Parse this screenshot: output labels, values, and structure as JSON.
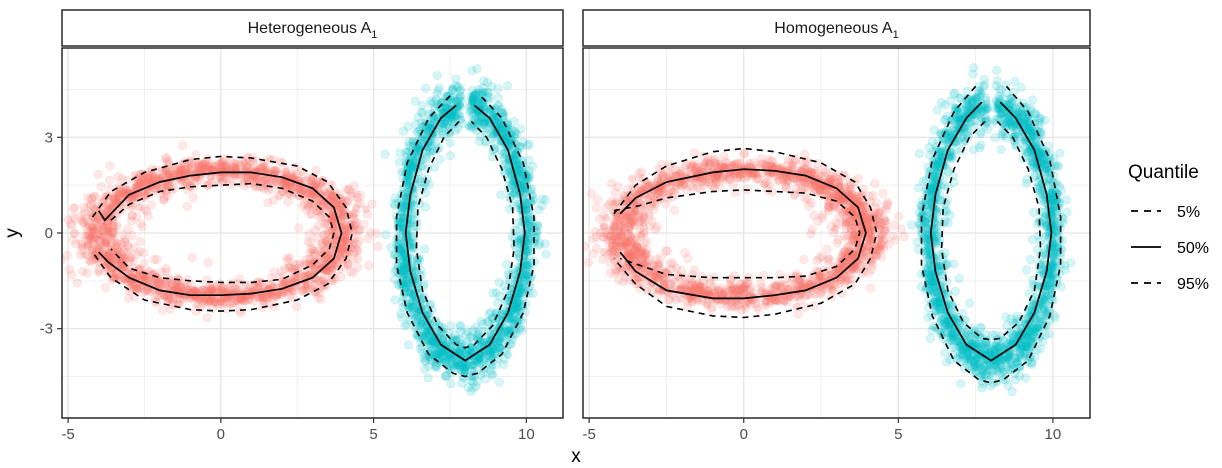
{
  "chart_data": {
    "type": "scatter",
    "facets": [
      {
        "label": "Heterogeneous A",
        "subscript": "1"
      },
      {
        "label": "Homogeneous A",
        "subscript": "1"
      }
    ],
    "xlabel": "x",
    "ylabel": "y",
    "xlim": [
      -5.2,
      11.2
    ],
    "ylim": [
      -5.8,
      5.8
    ],
    "x_ticks": [
      -5,
      0,
      5,
      10
    ],
    "y_ticks": [
      -3,
      0,
      3
    ],
    "x_tick_labels": [
      "-5",
      "0",
      "5",
      "10"
    ],
    "y_tick_labels": [
      "-3",
      "0",
      "3"
    ],
    "grid": true,
    "legend": {
      "title": "Quantile",
      "placement": "right",
      "items": [
        {
          "label": "5%",
          "linestyle": "dashed"
        },
        {
          "label": "50%",
          "linestyle": "solid"
        },
        {
          "label": "95%",
          "linestyle": "dashed"
        }
      ]
    },
    "clusters": [
      {
        "name": "left ellipse",
        "color": "#F8766D",
        "center": [
          0,
          0
        ],
        "rx": 4.0,
        "ry": 2.0
      },
      {
        "name": "right ellipse",
        "color": "#00BFC4",
        "center": [
          8,
          0
        ],
        "rx": 2.0,
        "ry": 4.0,
        "gap_at_top": true
      }
    ],
    "quantile_curves": [
      {
        "facet": 0,
        "cluster": "left ellipse",
        "q50": [
          [
            -4.0,
            0.7
          ],
          [
            -3.8,
            0.4
          ],
          [
            -3.0,
            1.2
          ],
          [
            -2.0,
            1.6
          ],
          [
            -1.0,
            1.8
          ],
          [
            0,
            1.9
          ],
          [
            1.0,
            1.9
          ],
          [
            2.0,
            1.75
          ],
          [
            3.0,
            1.4
          ],
          [
            3.7,
            0.8
          ],
          [
            3.95,
            0.0
          ],
          [
            3.7,
            -0.8
          ],
          [
            3.0,
            -1.4
          ],
          [
            2.0,
            -1.75
          ],
          [
            1.0,
            -1.9
          ],
          [
            0,
            -1.95
          ],
          [
            -1.0,
            -1.95
          ],
          [
            -2.0,
            -1.8
          ],
          [
            -3.0,
            -1.4
          ],
          [
            -3.7,
            -0.9
          ],
          [
            -4.0,
            -0.6
          ]
        ],
        "q05_outer": [
          [
            -4.2,
            0.5
          ],
          [
            -3.6,
            1.3
          ],
          [
            -2.5,
            1.9
          ],
          [
            -1.0,
            2.3
          ],
          [
            0,
            2.4
          ],
          [
            1.0,
            2.35
          ],
          [
            2.5,
            2.1
          ],
          [
            3.5,
            1.6
          ],
          [
            4.1,
            0.8
          ],
          [
            4.3,
            0.0
          ],
          [
            4.1,
            -0.8
          ],
          [
            3.5,
            -1.6
          ],
          [
            2.5,
            -2.1
          ],
          [
            1.0,
            -2.4
          ],
          [
            0,
            -2.45
          ],
          [
            -1.0,
            -2.4
          ],
          [
            -2.5,
            -2.1
          ],
          [
            -3.6,
            -1.4
          ],
          [
            -4.2,
            -0.6
          ]
        ],
        "q95_inner": [
          [
            -3.6,
            0.4
          ],
          [
            -3.0,
            0.9
          ],
          [
            -2.0,
            1.3
          ],
          [
            -1.0,
            1.45
          ],
          [
            0,
            1.5
          ],
          [
            1.0,
            1.55
          ],
          [
            2.0,
            1.4
          ],
          [
            3.0,
            1.0
          ],
          [
            3.55,
            0.5
          ],
          [
            3.7,
            0.0
          ],
          [
            3.55,
            -0.5
          ],
          [
            3.0,
            -1.0
          ],
          [
            2.0,
            -1.45
          ],
          [
            1.0,
            -1.55
          ],
          [
            0,
            -1.55
          ],
          [
            -1.0,
            -1.5
          ],
          [
            -2.0,
            -1.4
          ],
          [
            -3.0,
            -1.1
          ],
          [
            -3.6,
            -0.5
          ]
        ]
      },
      {
        "facet": 0,
        "cluster": "right ellipse",
        "q50": [
          [
            7.7,
            4.0
          ],
          [
            7.2,
            3.6
          ],
          [
            6.6,
            2.6
          ],
          [
            6.2,
            1.2
          ],
          [
            6.05,
            0.0
          ],
          [
            6.2,
            -1.2
          ],
          [
            6.6,
            -2.5
          ],
          [
            7.2,
            -3.5
          ],
          [
            8.0,
            -4.0
          ],
          [
            8.8,
            -3.5
          ],
          [
            9.4,
            -2.5
          ],
          [
            9.8,
            -1.2
          ],
          [
            9.95,
            0.0
          ],
          [
            9.8,
            1.2
          ],
          [
            9.4,
            2.6
          ],
          [
            8.8,
            3.6
          ],
          [
            8.3,
            4.0
          ]
        ],
        "q05_outer": [
          [
            7.5,
            4.3
          ],
          [
            6.8,
            3.6
          ],
          [
            6.1,
            2.2
          ],
          [
            5.75,
            0.5
          ],
          [
            5.75,
            -1.0
          ],
          [
            6.1,
            -2.5
          ],
          [
            6.8,
            -3.8
          ],
          [
            7.6,
            -4.4
          ],
          [
            8.0,
            -4.5
          ],
          [
            8.4,
            -4.4
          ],
          [
            9.2,
            -3.8
          ],
          [
            9.9,
            -2.5
          ],
          [
            10.25,
            -1.0
          ],
          [
            10.25,
            0.5
          ],
          [
            9.9,
            2.2
          ],
          [
            9.2,
            3.6
          ],
          [
            8.5,
            4.3
          ]
        ],
        "q95_inner": [
          [
            7.8,
            3.5
          ],
          [
            7.3,
            3.0
          ],
          [
            6.8,
            2.0
          ],
          [
            6.45,
            0.8
          ],
          [
            6.4,
            -0.5
          ],
          [
            6.6,
            -1.8
          ],
          [
            7.1,
            -2.9
          ],
          [
            7.7,
            -3.5
          ],
          [
            8.0,
            -3.6
          ],
          [
            8.3,
            -3.5
          ],
          [
            8.9,
            -2.9
          ],
          [
            9.4,
            -1.8
          ],
          [
            9.6,
            -0.5
          ],
          [
            9.55,
            0.8
          ],
          [
            9.2,
            2.0
          ],
          [
            8.7,
            3.0
          ],
          [
            8.2,
            3.5
          ]
        ]
      },
      {
        "facet": 1,
        "cluster": "left ellipse",
        "q50": [
          [
            -4.0,
            0.6
          ],
          [
            -3.5,
            1.1
          ],
          [
            -2.5,
            1.6
          ],
          [
            -1.0,
            1.9
          ],
          [
            0,
            2.0
          ],
          [
            1.0,
            1.95
          ],
          [
            2.0,
            1.8
          ],
          [
            3.0,
            1.4
          ],
          [
            3.7,
            0.8
          ],
          [
            3.95,
            0.0
          ],
          [
            3.7,
            -0.8
          ],
          [
            3.0,
            -1.4
          ],
          [
            2.0,
            -1.8
          ],
          [
            1.0,
            -1.95
          ],
          [
            0,
            -2.05
          ],
          [
            -1.0,
            -2.05
          ],
          [
            -2.5,
            -1.8
          ],
          [
            -3.5,
            -1.2
          ],
          [
            -4.0,
            -0.6
          ]
        ],
        "q05_outer": [
          [
            -4.2,
            0.6
          ],
          [
            -3.5,
            1.5
          ],
          [
            -2.5,
            2.1
          ],
          [
            -1.0,
            2.55
          ],
          [
            0,
            2.65
          ],
          [
            1.0,
            2.55
          ],
          [
            2.5,
            2.2
          ],
          [
            3.6,
            1.6
          ],
          [
            4.1,
            0.8
          ],
          [
            4.3,
            0.0
          ],
          [
            4.1,
            -0.8
          ],
          [
            3.6,
            -1.6
          ],
          [
            2.5,
            -2.2
          ],
          [
            1.0,
            -2.55
          ],
          [
            0,
            -2.65
          ],
          [
            -1.0,
            -2.6
          ],
          [
            -2.5,
            -2.3
          ],
          [
            -3.5,
            -1.6
          ],
          [
            -4.2,
            -0.8
          ]
        ],
        "q95_inner": [
          [
            -4.2,
            0.7
          ],
          [
            -3.4,
            0.85
          ],
          [
            -2.5,
            1.1
          ],
          [
            -1.0,
            1.3
          ],
          [
            0,
            1.35
          ],
          [
            1.0,
            1.3
          ],
          [
            2.0,
            1.25
          ],
          [
            3.0,
            1.0
          ],
          [
            3.6,
            0.5
          ],
          [
            3.75,
            0.0
          ],
          [
            3.6,
            -0.5
          ],
          [
            3.0,
            -1.05
          ],
          [
            2.0,
            -1.35
          ],
          [
            1.0,
            -1.4
          ],
          [
            0,
            -1.4
          ],
          [
            -1.0,
            -1.4
          ],
          [
            -2.5,
            -1.3
          ],
          [
            -3.4,
            -1.0
          ],
          [
            -4.0,
            -0.8
          ]
        ]
      },
      {
        "facet": 1,
        "cluster": "right ellipse",
        "q50": [
          [
            7.7,
            4.1
          ],
          [
            7.2,
            3.6
          ],
          [
            6.6,
            2.6
          ],
          [
            6.2,
            1.2
          ],
          [
            6.05,
            0.0
          ],
          [
            6.2,
            -1.2
          ],
          [
            6.6,
            -2.5
          ],
          [
            7.2,
            -3.5
          ],
          [
            8.0,
            -4.0
          ],
          [
            8.8,
            -3.5
          ],
          [
            9.4,
            -2.5
          ],
          [
            9.8,
            -1.2
          ],
          [
            9.95,
            0.0
          ],
          [
            9.8,
            1.2
          ],
          [
            9.4,
            2.6
          ],
          [
            8.8,
            3.6
          ],
          [
            8.3,
            4.1
          ]
        ],
        "q05_outer": [
          [
            7.5,
            4.6
          ],
          [
            6.8,
            3.8
          ],
          [
            6.1,
            2.3
          ],
          [
            5.75,
            0.5
          ],
          [
            5.75,
            -1.0
          ],
          [
            6.1,
            -2.6
          ],
          [
            6.8,
            -4.0
          ],
          [
            7.6,
            -4.6
          ],
          [
            8.0,
            -4.7
          ],
          [
            8.4,
            -4.6
          ],
          [
            9.2,
            -4.0
          ],
          [
            9.9,
            -2.6
          ],
          [
            10.25,
            -1.0
          ],
          [
            10.25,
            0.5
          ],
          [
            9.9,
            2.3
          ],
          [
            9.2,
            3.8
          ],
          [
            8.5,
            4.6
          ]
        ],
        "q95_inner": [
          [
            7.8,
            3.5
          ],
          [
            7.3,
            3.0
          ],
          [
            6.8,
            2.0
          ],
          [
            6.45,
            0.8
          ],
          [
            6.4,
            -0.5
          ],
          [
            6.6,
            -1.8
          ],
          [
            7.1,
            -2.8
          ],
          [
            7.7,
            -3.3
          ],
          [
            8.0,
            -3.35
          ],
          [
            8.3,
            -3.3
          ],
          [
            8.9,
            -2.8
          ],
          [
            9.4,
            -1.8
          ],
          [
            9.6,
            -0.5
          ],
          [
            9.55,
            0.8
          ],
          [
            9.2,
            2.0
          ],
          [
            8.7,
            3.0
          ],
          [
            8.2,
            3.5
          ]
        ]
      }
    ]
  }
}
